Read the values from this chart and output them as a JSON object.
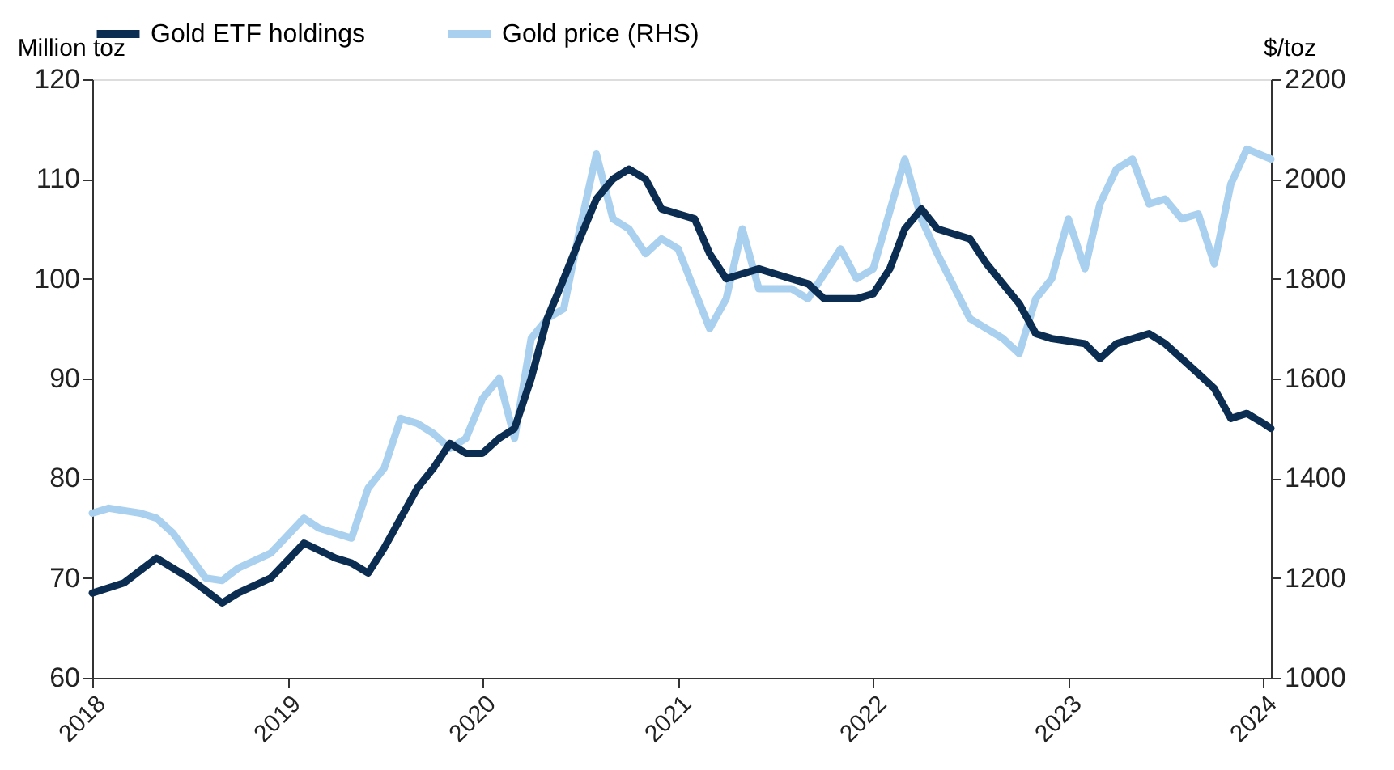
{
  "chart_data": {
    "type": "line",
    "ylabel": "Million toz",
    "y2label": "$/toz",
    "legend": "top",
    "grid": false,
    "marker": "none",
    "line_style": "solid",
    "xlim": [
      "2018-01-01",
      "2024-01-15"
    ],
    "xticks": [
      "2018",
      "2019",
      "2020",
      "2021",
      "2022",
      "2023",
      "2024"
    ],
    "ylim": [
      60,
      120
    ],
    "yticks": [
      60,
      70,
      80,
      90,
      100,
      110,
      120
    ],
    "y2lim": [
      1000,
      2200
    ],
    "y2ticks": [
      1000,
      1200,
      1400,
      1600,
      1800,
      2000,
      2200
    ],
    "series": [
      {
        "name": "Gold ETF holdings",
        "color": "#0b2d52",
        "x": [
          "2018-01-01",
          "2018-03-01",
          "2018-05-01",
          "2018-07-01",
          "2018-09-01",
          "2018-10-01",
          "2018-12-01",
          "2019-02-01",
          "2019-04-01",
          "2019-05-01",
          "2019-06-01",
          "2019-07-01",
          "2019-09-01",
          "2019-10-01",
          "2019-11-01",
          "2019-12-01",
          "2020-01-01",
          "2020-02-01",
          "2020-03-01",
          "2020-04-01",
          "2020-05-01",
          "2020-06-01",
          "2020-07-01",
          "2020-08-01",
          "2020-09-01",
          "2020-10-01",
          "2020-11-01",
          "2020-12-01",
          "2021-01-01",
          "2021-02-01",
          "2021-03-01",
          "2021-04-01",
          "2021-05-01",
          "2021-06-01",
          "2021-07-01",
          "2021-09-01",
          "2021-10-01",
          "2021-12-01",
          "2022-01-01",
          "2022-02-01",
          "2022-03-01",
          "2022-04-01",
          "2022-05-01",
          "2022-07-01",
          "2022-08-01",
          "2022-10-01",
          "2022-11-01",
          "2022-12-01",
          "2023-02-01",
          "2023-03-01",
          "2023-04-01",
          "2023-06-01",
          "2023-07-01",
          "2023-09-01",
          "2023-10-01",
          "2023-11-01",
          "2023-12-01",
          "2024-01-01",
          "2024-01-15"
        ],
        "values": [
          68.5,
          69.5,
          72,
          70,
          67.5,
          68.5,
          70,
          73.5,
          72,
          71.5,
          70.5,
          73,
          79,
          81,
          83.5,
          82.5,
          82.5,
          84,
          85,
          90,
          96,
          100,
          104,
          108,
          110,
          111,
          110,
          107,
          106.5,
          106,
          102.5,
          100,
          100.5,
          101,
          100.5,
          99.5,
          98,
          98,
          98.5,
          101,
          105,
          107,
          105,
          104,
          101.5,
          97.5,
          94.5,
          94,
          93.5,
          92,
          93.5,
          94.5,
          93.5,
          90.5,
          89,
          86,
          86.5,
          85.5,
          85
        ]
      },
      {
        "name": "Gold price (RHS)",
        "color": "#a9d0ee",
        "axis": "y2",
        "x": [
          "2018-01-01",
          "2018-02-01",
          "2018-04-01",
          "2018-05-01",
          "2018-06-01",
          "2018-08-01",
          "2018-09-01",
          "2018-10-01",
          "2018-12-01",
          "2019-02-01",
          "2019-03-01",
          "2019-05-01",
          "2019-06-01",
          "2019-07-01",
          "2019-08-01",
          "2019-09-01",
          "2019-10-01",
          "2019-11-01",
          "2019-12-01",
          "2020-01-01",
          "2020-02-01",
          "2020-03-01",
          "2020-04-01",
          "2020-05-01",
          "2020-06-01",
          "2020-07-01",
          "2020-08-01",
          "2020-09-01",
          "2020-10-01",
          "2020-11-01",
          "2020-12-01",
          "2021-01-01",
          "2021-03-01",
          "2021-04-01",
          "2021-05-01",
          "2021-06-01",
          "2021-08-01",
          "2021-09-01",
          "2021-11-01",
          "2021-12-01",
          "2022-01-01",
          "2022-03-01",
          "2022-04-01",
          "2022-05-01",
          "2022-07-01",
          "2022-09-01",
          "2022-10-01",
          "2022-11-01",
          "2022-12-01",
          "2023-01-01",
          "2023-02-01",
          "2023-03-01",
          "2023-04-01",
          "2023-05-01",
          "2023-06-01",
          "2023-07-01",
          "2023-08-01",
          "2023-09-01",
          "2023-10-01",
          "2023-11-01",
          "2023-12-01",
          "2024-01-15"
        ],
        "values": [
          1330,
          1340,
          1330,
          1320,
          1290,
          1200,
          1195,
          1220,
          1250,
          1320,
          1300,
          1280,
          1380,
          1420,
          1520,
          1510,
          1490,
          1460,
          1480,
          1560,
          1600,
          1480,
          1680,
          1720,
          1740,
          1900,
          2050,
          1920,
          1900,
          1850,
          1880,
          1860,
          1700,
          1760,
          1900,
          1780,
          1780,
          1760,
          1860,
          1800,
          1820,
          2040,
          1920,
          1850,
          1720,
          1680,
          1650,
          1760,
          1800,
          1920,
          1820,
          1950,
          2020,
          2040,
          1950,
          1960,
          1920,
          1930,
          1830,
          1990,
          2060,
          2040
        ]
      }
    ]
  }
}
